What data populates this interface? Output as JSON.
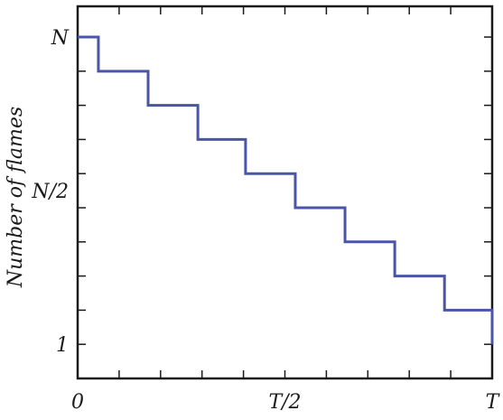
{
  "chart_data": {
    "type": "line",
    "title": "",
    "xlabel": "",
    "ylabel": "Number of flames",
    "x_ticks": [
      {
        "value": 0,
        "label": "0"
      },
      {
        "value": 0.5,
        "label": "T/2"
      },
      {
        "value": 1,
        "label": "T"
      }
    ],
    "y_ticks": [
      {
        "value": 1,
        "label": "1"
      },
      {
        "value": 5.5,
        "label": "N/2"
      },
      {
        "value": 10,
        "label": "N"
      }
    ],
    "xlim": [
      0,
      1
    ],
    "ylim": [
      0,
      10.9
    ],
    "grid": false,
    "legend": "none",
    "series": [
      {
        "color": "#4a55a8",
        "step": true,
        "x": [
          0,
          0.05,
          0.17,
          0.29,
          0.405,
          0.525,
          0.645,
          0.765,
          0.885,
          1.0
        ],
        "y": [
          10,
          9,
          8,
          7,
          6,
          5,
          4,
          3,
          2,
          1
        ]
      }
    ]
  }
}
